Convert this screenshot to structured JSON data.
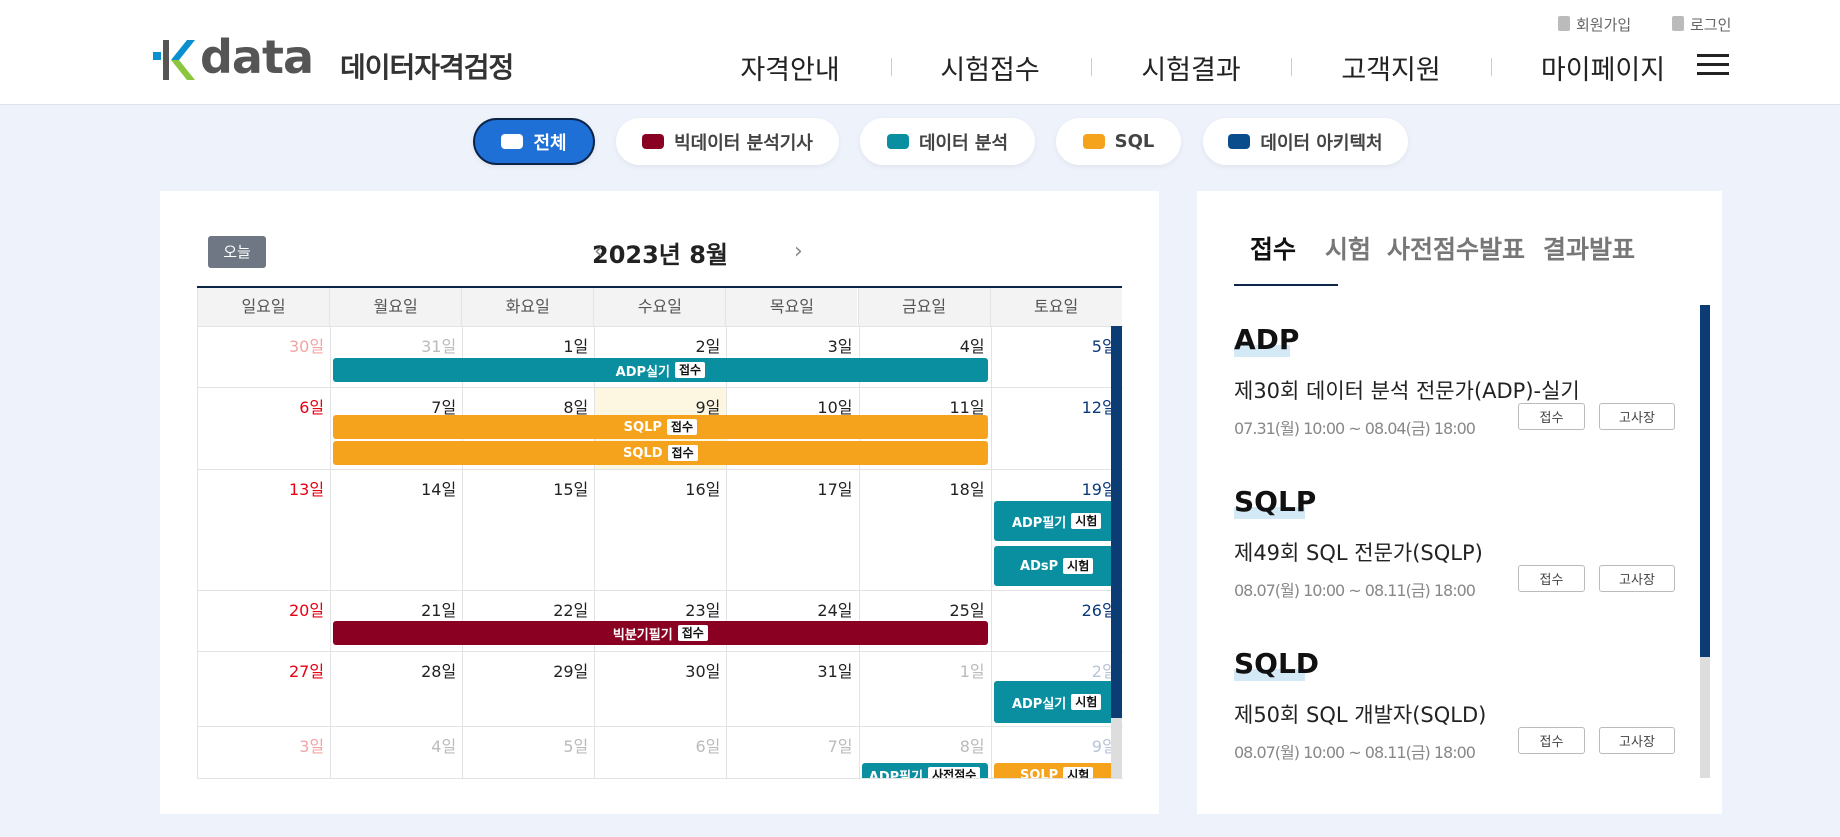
{
  "header": {
    "logo": "data",
    "brand": "데이터자격검정",
    "util": [
      "회원가입",
      "로그인"
    ],
    "nav": [
      "자격안내",
      "시험접수",
      "시험결과",
      "고객지원",
      "마이페이지"
    ]
  },
  "filters": [
    {
      "label": "전체",
      "color": "#ffffff"
    },
    {
      "label": "빅데이터 분석기사",
      "color": "#8a0022"
    },
    {
      "label": "데이터 분석",
      "color": "#0a8fa0"
    },
    {
      "label": "SQL",
      "color": "#f5a31d"
    },
    {
      "label": "데이터 아키텍처",
      "color": "#0a4d8c"
    }
  ],
  "calendar": {
    "today": "오늘",
    "month": "2023년 8월",
    "weekdays": [
      "일요일",
      "월요일",
      "화요일",
      "수요일",
      "목요일",
      "금요일",
      "토요일"
    ],
    "weeks": [
      {
        "days": [
          "30일",
          "31일",
          "1일",
          "2일",
          "3일",
          "4일",
          "5일"
        ],
        "events": [
          {
            "label": "ADP실기",
            "tag": "접수",
            "color": "#0a8fa0"
          }
        ]
      },
      {
        "days": [
          "6일",
          "7일",
          "8일",
          "9일",
          "10일",
          "11일",
          "12일"
        ],
        "events": [
          {
            "label": "SQLP",
            "tag": "접수",
            "color": "#f5a31d"
          },
          {
            "label": "SQLD",
            "tag": "접수",
            "color": "#f5a31d"
          }
        ]
      },
      {
        "days": [
          "13일",
          "14일",
          "15일",
          "16일",
          "17일",
          "18일",
          "19일"
        ],
        "events": [
          {
            "label": "ADP필기",
            "tag": "시험",
            "color": "#0a8fa0"
          },
          {
            "label": "ADsP",
            "tag": "시험",
            "color": "#0a8fa0"
          }
        ]
      },
      {
        "days": [
          "20일",
          "21일",
          "22일",
          "23일",
          "24일",
          "25일",
          "26일"
        ],
        "events": [
          {
            "label": "빅분기필기",
            "tag": "접수",
            "color": "#8a0022"
          }
        ]
      },
      {
        "days": [
          "27일",
          "28일",
          "29일",
          "30일",
          "31일",
          "1일",
          "2일"
        ],
        "events": [
          {
            "label": "ADP실기",
            "tag": "시험",
            "color": "#0a8fa0"
          }
        ]
      },
      {
        "days": [
          "3일",
          "4일",
          "5일",
          "6일",
          "7일",
          "8일",
          "9일"
        ],
        "events": [
          {
            "label": "ADP필기",
            "tag": "사전점수",
            "color": "#0a8fa0"
          },
          {
            "label": "SQLP",
            "tag": "시험",
            "color": "#f5a31d"
          }
        ]
      }
    ]
  },
  "panel": {
    "tabs": [
      "접수",
      "시험",
      "사전점수발표",
      "결과발표"
    ],
    "items": [
      {
        "heading": "ADP",
        "title": "제30회 데이터 분석 전문가(ADP)-실기",
        "date": "07.31(월) 10:00 ~ 08.04(금) 18:00",
        "buttons": [
          "접수",
          "고사장"
        ]
      },
      {
        "heading": "SQLP",
        "title": "제49회 SQL 전문가(SQLP)",
        "date": "08.07(월) 10:00 ~ 08.11(금) 18:00",
        "buttons": [
          "접수",
          "고사장"
        ]
      },
      {
        "heading": "SQLD",
        "title": "제50회 SQL 개발자(SQLD)",
        "date": "08.07(월) 10:00 ~ 08.11(금) 18:00",
        "buttons": [
          "접수",
          "고사장"
        ]
      }
    ]
  }
}
